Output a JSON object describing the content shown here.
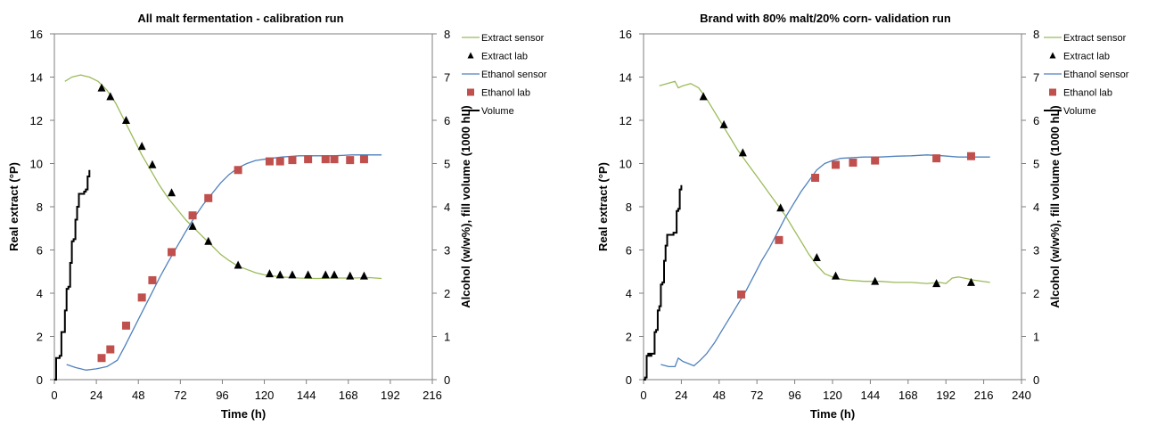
{
  "colors": {
    "extract": "#9BBB59",
    "ethanol": "#4F81BD",
    "extract_lab": "#000000",
    "ethanol_lab": "#C0504D",
    "volume": "#000000"
  },
  "chart_data": [
    {
      "type": "line",
      "title": "All malt fermentation - calibration run",
      "xlabel": "Time (h)",
      "ylabel": "Real extract (°P)",
      "y2label": "Alcohol (w/w%), fill volume (1000 hL)",
      "xlim": [
        0,
        216
      ],
      "xticks": [
        0,
        24,
        48,
        72,
        96,
        120,
        144,
        168,
        192,
        216
      ],
      "ylim": [
        0,
        16
      ],
      "yticks": [
        0,
        2,
        4,
        6,
        8,
        10,
        12,
        14,
        16
      ],
      "y2lim": [
        0,
        8
      ],
      "y2ticks": [
        0,
        1,
        2,
        3,
        4,
        5,
        6,
        7,
        8
      ],
      "legend_position": "right",
      "legend": [
        "Extract sensor",
        "Extract lab",
        "Ethanol sensor",
        "Ethanol lab",
        "Volume"
      ],
      "series": [
        {
          "name": "Extract sensor",
          "axis": "left",
          "style": "line",
          "x": [
            6,
            10,
            15,
            20,
            25,
            30,
            35,
            40,
            45,
            50,
            55,
            60,
            65,
            70,
            75,
            80,
            85,
            90,
            95,
            100,
            105,
            110,
            115,
            120,
            125,
            130,
            140,
            150,
            160,
            170,
            180,
            187
          ],
          "y": [
            13.8,
            14.0,
            14.1,
            14.0,
            13.8,
            13.4,
            12.8,
            12.0,
            11.2,
            10.4,
            9.7,
            9.0,
            8.4,
            7.9,
            7.4,
            7.0,
            6.6,
            6.2,
            5.8,
            5.5,
            5.25,
            5.1,
            4.95,
            4.85,
            4.8,
            4.75,
            4.7,
            4.68,
            4.7,
            4.7,
            4.72,
            4.68
          ]
        },
        {
          "name": "Extract lab",
          "axis": "left",
          "style": "triangle",
          "x": [
            27,
            32,
            41,
            50,
            56,
            67,
            79,
            88,
            105,
            123,
            129,
            136,
            145,
            155,
            160,
            169,
            177
          ],
          "y": [
            13.5,
            13.1,
            12.0,
            10.8,
            9.95,
            8.65,
            7.1,
            6.4,
            5.3,
            4.9,
            4.85,
            4.85,
            4.85,
            4.85,
            4.85,
            4.8,
            4.8
          ]
        },
        {
          "name": "Ethanol sensor",
          "axis": "right",
          "style": "line",
          "x": [
            7,
            12,
            18,
            24,
            30,
            36,
            40,
            45,
            50,
            55,
            60,
            65,
            70,
            75,
            80,
            85,
            90,
            95,
            100,
            105,
            110,
            115,
            120,
            130,
            140,
            150,
            160,
            170,
            180,
            187
          ],
          "y": [
            0.35,
            0.28,
            0.22,
            0.25,
            0.3,
            0.45,
            0.75,
            1.15,
            1.55,
            1.95,
            2.35,
            2.72,
            3.07,
            3.42,
            3.75,
            4.05,
            4.3,
            4.55,
            4.75,
            4.9,
            5.0,
            5.07,
            5.1,
            5.15,
            5.18,
            5.18,
            5.18,
            5.2,
            5.2,
            5.2
          ]
        },
        {
          "name": "Ethanol lab",
          "axis": "right",
          "style": "square",
          "x": [
            27,
            32,
            41,
            50,
            56,
            67,
            79,
            88,
            105,
            123,
            129,
            136,
            145,
            155,
            160,
            169,
            177
          ],
          "y": [
            0.5,
            0.7,
            1.25,
            1.9,
            2.3,
            2.95,
            3.8,
            4.2,
            4.85,
            5.05,
            5.05,
            5.08,
            5.1,
            5.1,
            5.1,
            5.08,
            5.1
          ]
        },
        {
          "name": "Volume",
          "axis": "right",
          "style": "step",
          "x": [
            0,
            1,
            2,
            3,
            4,
            5,
            6,
            7,
            8,
            9,
            10,
            11,
            12,
            13,
            14,
            15,
            16,
            17,
            18,
            19,
            20
          ],
          "y": [
            0,
            0.5,
            0.5,
            0.55,
            1.1,
            1.1,
            1.6,
            2.1,
            2.15,
            2.7,
            3.2,
            3.25,
            3.7,
            4.0,
            4.3,
            4.3,
            4.3,
            4.35,
            4.4,
            4.7,
            4.85
          ]
        }
      ]
    },
    {
      "type": "line",
      "title": "Brand with 80% malt/20% corn- validation run",
      "xlabel": "Time (h)",
      "ylabel": "Real extract (°P)",
      "y2label": "Alcohol (w/w%), fill volume (1000 hL)",
      "xlim": [
        0,
        240
      ],
      "xticks": [
        0,
        24,
        48,
        72,
        96,
        120,
        144,
        168,
        192,
        216,
        240
      ],
      "ylim": [
        0,
        16
      ],
      "yticks": [
        0,
        2,
        4,
        6,
        8,
        10,
        12,
        14,
        16
      ],
      "y2lim": [
        0,
        8
      ],
      "y2ticks": [
        0,
        1,
        2,
        3,
        4,
        5,
        6,
        7,
        8
      ],
      "legend_position": "right",
      "legend": [
        "Extract sensor",
        "Extract lab",
        "Ethanol sensor",
        "Ethanol lab",
        "Volume"
      ],
      "series": [
        {
          "name": "Extract sensor",
          "axis": "left",
          "style": "line",
          "x": [
            10,
            15,
            20,
            22,
            25,
            30,
            35,
            40,
            45,
            50,
            55,
            60,
            65,
            70,
            75,
            80,
            85,
            90,
            95,
            100,
            105,
            110,
            115,
            120,
            125,
            130,
            140,
            150,
            160,
            170,
            180,
            188,
            192,
            196,
            200,
            210,
            220
          ],
          "y": [
            13.6,
            13.7,
            13.8,
            13.5,
            13.6,
            13.7,
            13.5,
            13.0,
            12.4,
            11.8,
            11.2,
            10.6,
            10.1,
            9.6,
            9.1,
            8.6,
            8.1,
            7.6,
            7.0,
            6.4,
            5.8,
            5.3,
            4.9,
            4.75,
            4.65,
            4.6,
            4.55,
            4.55,
            4.5,
            4.5,
            4.45,
            4.5,
            4.45,
            4.7,
            4.75,
            4.6,
            4.5
          ]
        },
        {
          "name": "Extract lab",
          "axis": "left",
          "style": "triangle",
          "x": [
            38,
            51,
            63,
            87,
            110,
            122,
            147,
            186,
            208
          ],
          "y": [
            13.1,
            11.8,
            10.5,
            7.95,
            5.65,
            4.8,
            4.55,
            4.45,
            4.5
          ]
        },
        {
          "name": "Ethanol sensor",
          "axis": "right",
          "style": "line",
          "x": [
            11,
            16,
            20,
            22,
            25,
            28,
            32,
            36,
            40,
            45,
            50,
            55,
            60,
            65,
            70,
            75,
            80,
            85,
            90,
            95,
            100,
            105,
            110,
            115,
            120,
            125,
            130,
            140,
            150,
            160,
            170,
            180,
            190,
            200,
            210,
            220
          ],
          "y": [
            0.35,
            0.3,
            0.3,
            0.5,
            0.42,
            0.38,
            0.32,
            0.45,
            0.6,
            0.85,
            1.15,
            1.45,
            1.75,
            2.05,
            2.4,
            2.75,
            3.05,
            3.4,
            3.75,
            4.05,
            4.35,
            4.6,
            4.85,
            5.0,
            5.07,
            5.12,
            5.13,
            5.15,
            5.15,
            5.17,
            5.18,
            5.2,
            5.18,
            5.15,
            5.15,
            5.15
          ]
        },
        {
          "name": "Ethanol lab",
          "axis": "right",
          "style": "square",
          "x": [
            62,
            86,
            109,
            122,
            133,
            147,
            186,
            208
          ],
          "y": [
            1.97,
            3.23,
            4.67,
            4.97,
            5.02,
            5.07,
            5.12,
            5.17
          ]
        },
        {
          "name": "Volume",
          "axis": "right",
          "style": "step",
          "x": [
            0,
            1,
            2,
            3,
            4,
            5,
            6,
            7,
            8,
            9,
            10,
            11,
            12,
            13,
            14,
            15,
            16,
            17,
            18,
            19,
            20,
            21,
            22,
            23,
            24
          ],
          "y": [
            0,
            0.05,
            0.55,
            0.6,
            0.55,
            0.6,
            0.6,
            1.1,
            1.15,
            1.6,
            1.7,
            2.2,
            2.25,
            2.75,
            3.1,
            3.35,
            3.35,
            3.35,
            3.35,
            3.4,
            3.4,
            3.9,
            3.95,
            4.4,
            4.5
          ]
        }
      ]
    }
  ]
}
